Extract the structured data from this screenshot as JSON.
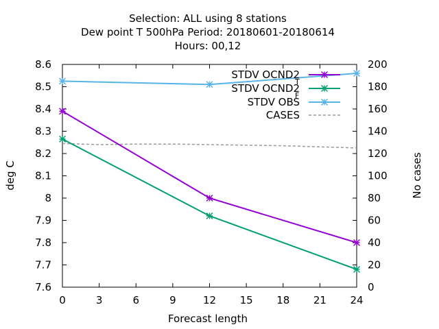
{
  "chart_data": {
    "type": "line",
    "title_lines": [
      "Selection: ALL using     8 stations",
      "Dew point T 500hPa   Period: 20180601-20180614",
      "Hours:  00,12"
    ],
    "xlabel": "Forecast length",
    "ylabel": "deg C",
    "y2label": "No cases",
    "xlim": [
      0,
      24
    ],
    "ylim": [
      7.6,
      8.6
    ],
    "y2lim": [
      0,
      200
    ],
    "xticks": [
      "0",
      "3",
      "6",
      "9",
      "12",
      "15",
      "18",
      "21",
      "24"
    ],
    "yticks": [
      "7.6",
      "7.7",
      "7.8",
      "7.9",
      "8",
      "8.1",
      "8.2",
      "8.3",
      "8.4",
      "8.5",
      "8.6"
    ],
    "y2ticks": [
      "0",
      "20",
      "40",
      "60",
      "80",
      "100",
      "120",
      "140",
      "160",
      "180",
      "200"
    ],
    "legend_position": "top-right",
    "grid": false,
    "series": [
      {
        "name": "STDV OCND2",
        "name_sub": "T",
        "color": "#9400d3",
        "axis": "y1",
        "style": "solid",
        "marker": "star",
        "x": [
          0,
          12,
          24
        ],
        "values": [
          8.39,
          8.0,
          7.8
        ]
      },
      {
        "name": "STDV OCND2",
        "name_sub": "F",
        "color": "#009e73",
        "axis": "y1",
        "style": "solid",
        "marker": "star",
        "x": [
          0,
          12,
          24
        ],
        "values": [
          8.265,
          7.92,
          7.68
        ]
      },
      {
        "name": "STDV OBS",
        "color": "#56b4e9",
        "axis": "y1",
        "style": "solid",
        "marker": "star",
        "x": [
          0,
          12,
          24
        ],
        "values": [
          8.525,
          8.51,
          8.56
        ]
      },
      {
        "name": "CASES",
        "color": "#999999",
        "axis": "y2",
        "style": "dashed",
        "marker": "none",
        "x": [
          0,
          3,
          6,
          9,
          12,
          15,
          18,
          21,
          24
        ],
        "values": [
          129,
          128,
          128.5,
          128.5,
          128,
          127.5,
          127,
          126,
          125
        ]
      }
    ]
  }
}
